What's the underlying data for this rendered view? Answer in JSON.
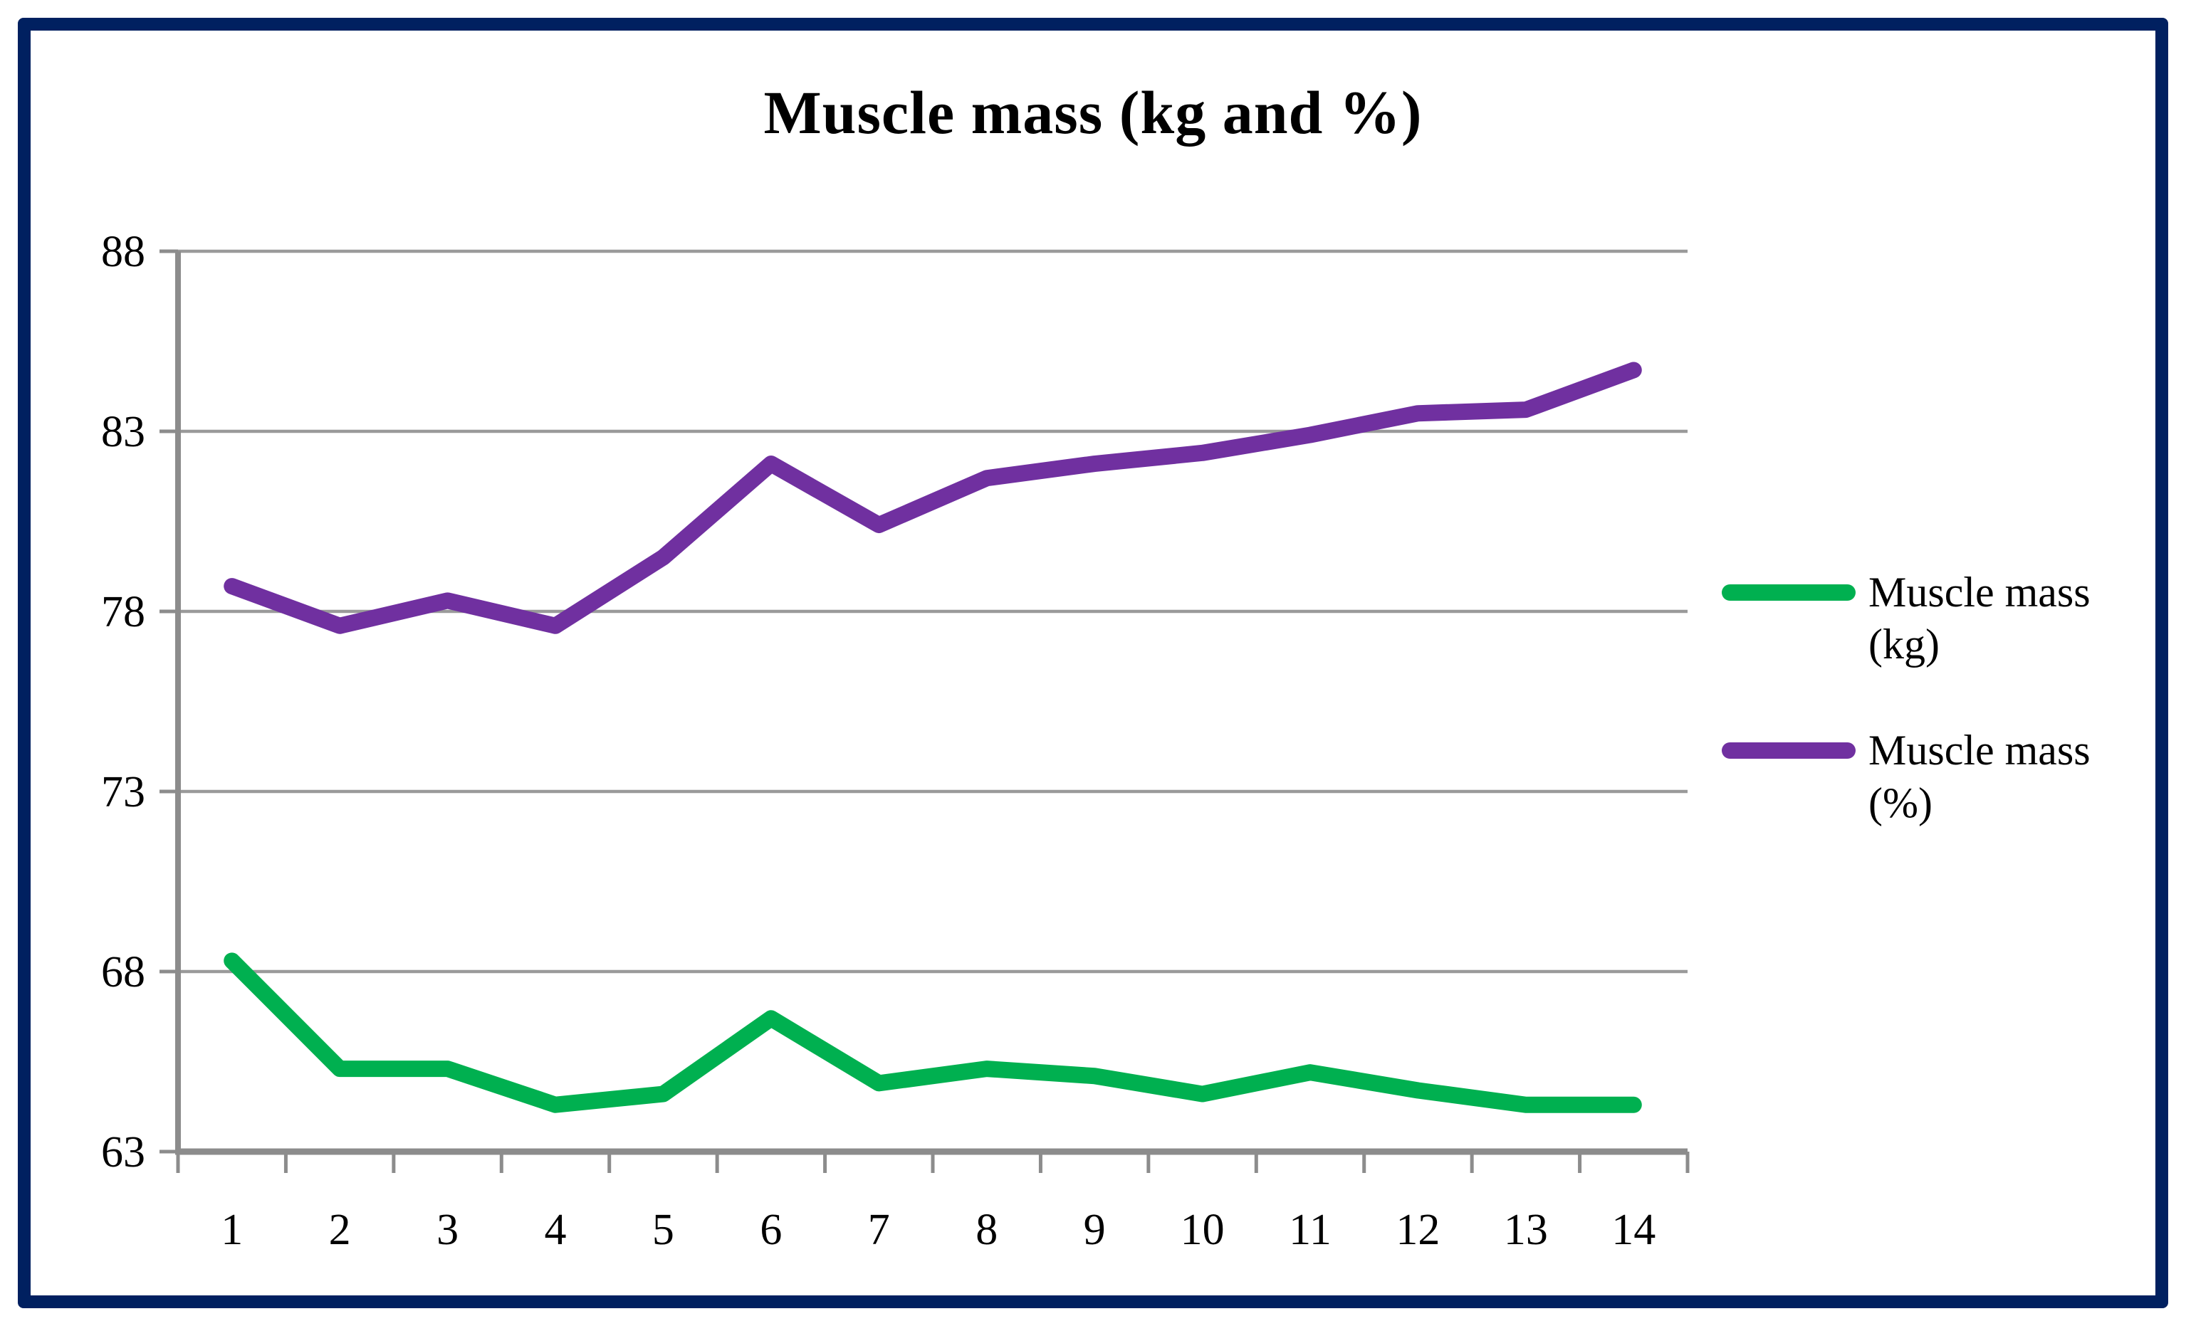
{
  "title": "Muscle mass (kg and %)",
  "colors": {
    "border": "#002060",
    "grid": "#9A9A9A",
    "axis": "#8C8C8C",
    "kg": "#00B050",
    "percent": "#7030A0",
    "text": "#000000",
    "background": "#FFFFFF"
  },
  "legend": {
    "entries": [
      {
        "label_line1": "Muscle mass",
        "label_line2": "(kg)",
        "series": "kg"
      },
      {
        "label_line1": "Muscle mass",
        "label_line2": "(%)",
        "series": "percent"
      }
    ]
  },
  "chart_data": {
    "type": "line",
    "title": "Muscle mass (kg and %)",
    "categories": [
      "1",
      "2",
      "3",
      "4",
      "5",
      "6",
      "7",
      "8",
      "9",
      "10",
      "11",
      "12",
      "13",
      "14"
    ],
    "series": [
      {
        "name": "Muscle mass (kg)",
        "color_key": "kg",
        "values": [
          68.3,
          65.3,
          65.3,
          64.3,
          64.6,
          66.7,
          64.9,
          65.3,
          65.1,
          64.6,
          65.2,
          64.7,
          64.3,
          64.3
        ]
      },
      {
        "name": "Muscle mass (%)",
        "color_key": "percent",
        "values": [
          78.7,
          77.6,
          78.3,
          77.6,
          79.5,
          82.1,
          80.4,
          81.7,
          82.1,
          82.4,
          82.9,
          83.5,
          83.6,
          84.7
        ]
      }
    ],
    "y_ticks": [
      63,
      68,
      73,
      78,
      83,
      88
    ],
    "ylim": [
      63,
      88
    ],
    "xlabel": "",
    "ylabel": "",
    "grid": true,
    "legend_position": "right"
  }
}
